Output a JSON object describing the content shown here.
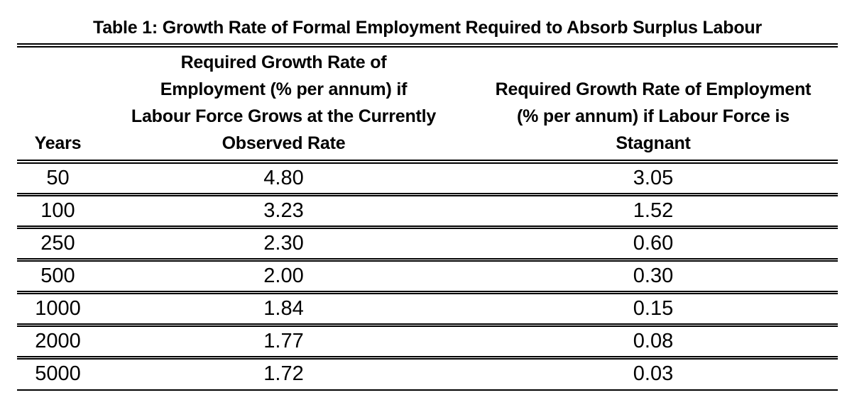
{
  "document": {
    "title": "Table 1: Growth Rate of Formal Employment Required to Absorb Surplus Labour"
  },
  "table": {
    "header": {
      "years": {
        "lines": [
          "Years"
        ]
      },
      "observed": {
        "lines": [
          "Required Growth Rate of",
          "Employment (% per annum) if",
          "Labour Force Grows at the Currently",
          "Observed Rate"
        ]
      },
      "stagnant": {
        "lines": [
          "Required Growth Rate of Employment",
          "(% per annum) if Labour Force is",
          "Stagnant"
        ]
      }
    },
    "rows": [
      {
        "years": "50",
        "observed": "4.80",
        "stagnant": "3.05"
      },
      {
        "years": "100",
        "observed": "3.23",
        "stagnant": "1.52"
      },
      {
        "years": "250",
        "observed": "2.30",
        "stagnant": "0.60"
      },
      {
        "years": "500",
        "observed": "2.00",
        "stagnant": "0.30"
      },
      {
        "years": "1000",
        "observed": "1.84",
        "stagnant": "0.15"
      },
      {
        "years": "2000",
        "observed": "1.77",
        "stagnant": "0.08"
      },
      {
        "years": "5000",
        "observed": "1.72",
        "stagnant": "0.03"
      }
    ]
  },
  "chart_data": {
    "type": "table",
    "title": "Table 1: Growth Rate of Formal Employment Required to Absorb Surplus Labour",
    "columns": [
      "Years",
      "Required Growth Rate of Employment (% per annum) if Labour Force Grows at the Currently Observed Rate",
      "Required Growth Rate of Employment (% per annum) if Labour Force is Stagnant"
    ],
    "rows": [
      [
        50,
        4.8,
        3.05
      ],
      [
        100,
        3.23,
        1.52
      ],
      [
        250,
        2.3,
        0.6
      ],
      [
        500,
        2.0,
        0.3
      ],
      [
        1000,
        1.84,
        0.15
      ],
      [
        2000,
        1.77,
        0.08
      ],
      [
        5000,
        1.72,
        0.03
      ]
    ]
  }
}
